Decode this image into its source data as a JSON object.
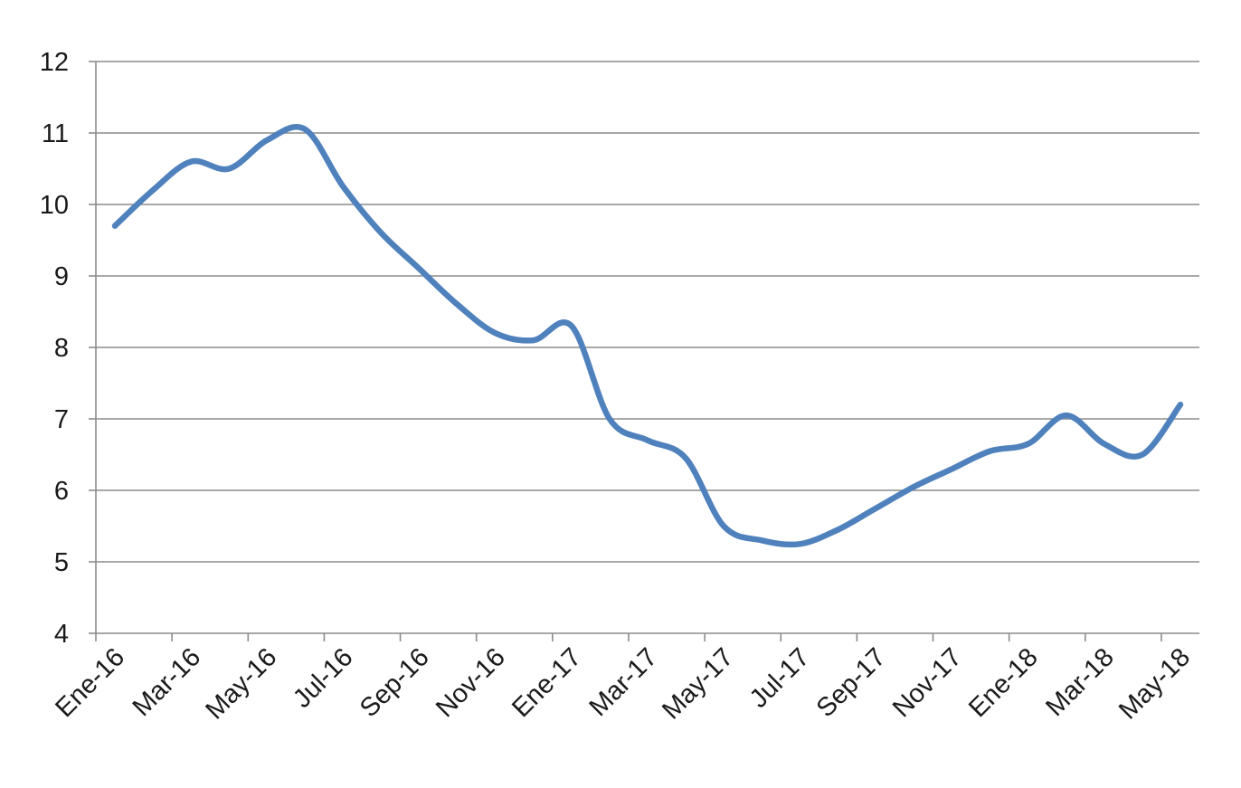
{
  "chart_data": {
    "type": "line",
    "x_tick_labels": [
      "Ene-16",
      "Mar-16",
      "May-16",
      "Jul-16",
      "Sep-16",
      "Nov-16",
      "Ene-17",
      "Mar-17",
      "May-17",
      "Jul-17",
      "Sep-17",
      "Nov-17",
      "Ene-18",
      "Mar-18",
      "May-18"
    ],
    "y_ticks": [
      4,
      5,
      6,
      7,
      8,
      9,
      10,
      11,
      12
    ],
    "ylim": [
      4,
      12
    ],
    "grid": true,
    "legend": "none",
    "colors": {
      "series": "#4f81bd"
    },
    "series": [
      {
        "x": [
          "Ene-16",
          "Feb-16",
          "Mar-16",
          "Abr-16",
          "May-16",
          "Jun-16",
          "Jul-16",
          "Ago-16",
          "Sep-16",
          "Oct-16",
          "Nov-16",
          "Dic-16",
          "Ene-17",
          "Feb-17",
          "Mar-17",
          "Abr-17",
          "May-17",
          "Jun-17",
          "Jul-17",
          "Ago-17",
          "Sep-17",
          "Oct-17",
          "Nov-17",
          "Dic-17",
          "Ene-18",
          "Feb-18",
          "Mar-18",
          "Abr-18",
          "May-18"
        ],
        "values": [
          9.7,
          10.2,
          10.6,
          10.5,
          10.9,
          11.05,
          10.25,
          9.6,
          9.1,
          8.6,
          8.2,
          8.1,
          8.3,
          7.0,
          6.7,
          6.45,
          5.5,
          5.3,
          5.25,
          5.45,
          5.75,
          6.05,
          6.3,
          6.55,
          6.65,
          7.05,
          6.65,
          6.5,
          7.2
        ]
      }
    ]
  }
}
